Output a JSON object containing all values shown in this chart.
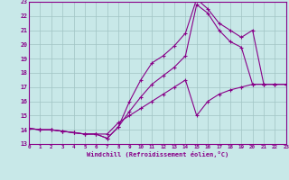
{
  "xlabel": "Windchill (Refroidissement éolien,°C)",
  "xlim": [
    0,
    23
  ],
  "ylim": [
    13,
    23
  ],
  "xticks": [
    0,
    1,
    2,
    3,
    4,
    5,
    6,
    7,
    8,
    9,
    10,
    11,
    12,
    13,
    14,
    15,
    16,
    17,
    18,
    19,
    20,
    21,
    22,
    23
  ],
  "yticks": [
    13,
    14,
    15,
    16,
    17,
    18,
    19,
    20,
    21,
    22,
    23
  ],
  "bg_color": "#c8e8e8",
  "grid_color": "#a0c4c4",
  "line_color": "#880088",
  "line1_x": [
    0,
    1,
    2,
    3,
    4,
    5,
    6,
    7,
    8,
    9,
    10,
    11,
    12,
    13,
    14,
    15,
    16,
    17,
    18,
    19,
    20,
    21,
    22,
    23
  ],
  "line1_y": [
    14.1,
    14.0,
    14.0,
    13.9,
    13.8,
    13.7,
    13.7,
    13.4,
    14.2,
    16.0,
    17.5,
    18.7,
    19.2,
    19.9,
    20.8,
    23.2,
    22.5,
    21.5,
    21.0,
    20.5,
    21.0,
    17.2,
    17.2,
    17.2
  ],
  "line2_x": [
    0,
    1,
    2,
    3,
    4,
    5,
    6,
    7,
    8,
    9,
    10,
    11,
    12,
    13,
    14,
    15,
    16,
    17,
    18,
    19,
    20,
    21,
    22,
    23
  ],
  "line2_y": [
    14.1,
    14.0,
    14.0,
    13.9,
    13.8,
    13.7,
    13.7,
    13.4,
    14.2,
    15.3,
    16.3,
    17.2,
    17.8,
    18.4,
    19.2,
    22.8,
    22.2,
    21.0,
    20.2,
    19.8,
    17.2,
    17.2,
    17.2,
    17.2
  ],
  "line3_x": [
    0,
    1,
    2,
    3,
    4,
    5,
    6,
    7,
    8,
    9,
    10,
    11,
    12,
    13,
    14,
    15,
    16,
    17,
    18,
    19,
    20,
    21,
    22,
    23
  ],
  "line3_y": [
    14.1,
    14.0,
    14.0,
    13.9,
    13.8,
    13.7,
    13.7,
    13.7,
    14.5,
    15.0,
    15.5,
    16.0,
    16.5,
    17.0,
    17.5,
    15.0,
    16.0,
    16.5,
    16.8,
    17.0,
    17.2,
    17.2,
    17.2,
    17.2
  ]
}
